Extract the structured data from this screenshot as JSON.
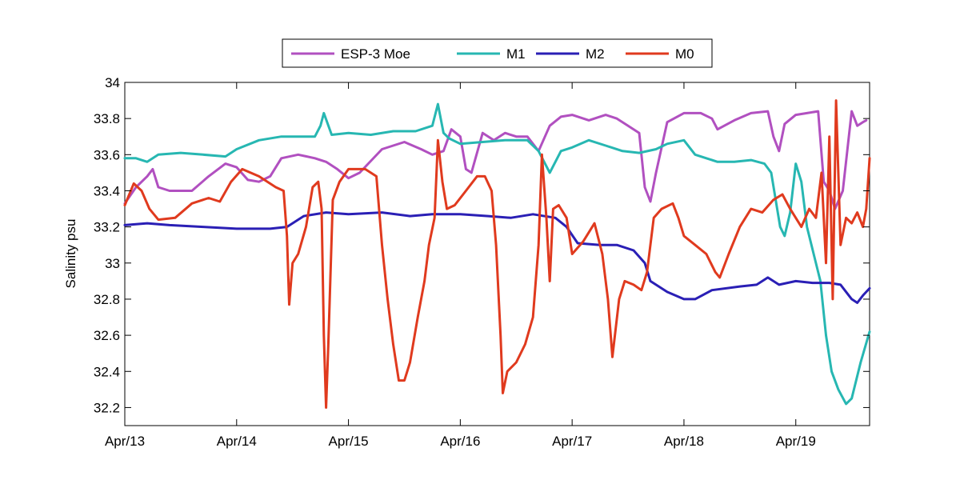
{
  "chart_data": {
    "type": "line",
    "title": "",
    "xlabel": "",
    "ylabel": "Salinity psu",
    "xlim": [
      13.0,
      19.66
    ],
    "ylim": [
      32.1,
      34.0
    ],
    "grid": false,
    "legend_position": "top",
    "x_ticks": [
      {
        "value": 13,
        "label": "Apr/13"
      },
      {
        "value": 14,
        "label": "Apr/14"
      },
      {
        "value": 15,
        "label": "Apr/15"
      },
      {
        "value": 16,
        "label": "Apr/16"
      },
      {
        "value": 17,
        "label": "Apr/17"
      },
      {
        "value": 18,
        "label": "Apr/18"
      },
      {
        "value": 19,
        "label": "Apr/19"
      }
    ],
    "y_ticks": [
      {
        "value": 32.2,
        "label": "32.2"
      },
      {
        "value": 32.4,
        "label": "32.4"
      },
      {
        "value": 32.6,
        "label": "32.6"
      },
      {
        "value": 32.8,
        "label": "32.8"
      },
      {
        "value": 33.0,
        "label": "33"
      },
      {
        "value": 33.2,
        "label": "33.2"
      },
      {
        "value": 33.4,
        "label": "33.4"
      },
      {
        "value": 33.6,
        "label": "33.6"
      },
      {
        "value": 33.8,
        "label": "33.8"
      },
      {
        "value": 34.0,
        "label": "34"
      }
    ],
    "series": [
      {
        "name": "ESP-3 Moe",
        "color": "#b150c0",
        "points": [
          [
            13.0,
            33.33
          ],
          [
            13.1,
            33.42
          ],
          [
            13.2,
            33.48
          ],
          [
            13.25,
            33.52
          ],
          [
            13.3,
            33.42
          ],
          [
            13.4,
            33.4
          ],
          [
            13.6,
            33.4
          ],
          [
            13.75,
            33.48
          ],
          [
            13.9,
            33.55
          ],
          [
            14.0,
            33.53
          ],
          [
            14.1,
            33.46
          ],
          [
            14.2,
            33.45
          ],
          [
            14.3,
            33.48
          ],
          [
            14.4,
            33.58
          ],
          [
            14.55,
            33.6
          ],
          [
            14.7,
            33.58
          ],
          [
            14.8,
            33.56
          ],
          [
            14.9,
            33.52
          ],
          [
            15.0,
            33.47
          ],
          [
            15.1,
            33.5
          ],
          [
            15.3,
            33.63
          ],
          [
            15.5,
            33.67
          ],
          [
            15.65,
            33.63
          ],
          [
            15.75,
            33.6
          ],
          [
            15.85,
            33.62
          ],
          [
            15.92,
            33.74
          ],
          [
            16.0,
            33.7
          ],
          [
            16.05,
            33.52
          ],
          [
            16.1,
            33.5
          ],
          [
            16.2,
            33.72
          ],
          [
            16.3,
            33.68
          ],
          [
            16.4,
            33.72
          ],
          [
            16.5,
            33.7
          ],
          [
            16.6,
            33.7
          ],
          [
            16.7,
            33.62
          ],
          [
            16.8,
            33.76
          ],
          [
            16.9,
            33.81
          ],
          [
            17.0,
            33.82
          ],
          [
            17.15,
            33.79
          ],
          [
            17.3,
            33.82
          ],
          [
            17.4,
            33.8
          ],
          [
            17.5,
            33.76
          ],
          [
            17.6,
            33.72
          ],
          [
            17.65,
            33.42
          ],
          [
            17.7,
            33.34
          ],
          [
            17.75,
            33.5
          ],
          [
            17.85,
            33.78
          ],
          [
            18.0,
            33.83
          ],
          [
            18.15,
            33.83
          ],
          [
            18.25,
            33.8
          ],
          [
            18.3,
            33.74
          ],
          [
            18.45,
            33.79
          ],
          [
            18.6,
            33.83
          ],
          [
            18.75,
            33.84
          ],
          [
            18.8,
            33.7
          ],
          [
            18.85,
            33.62
          ],
          [
            18.9,
            33.77
          ],
          [
            19.0,
            33.82
          ],
          [
            19.1,
            33.83
          ],
          [
            19.2,
            33.84
          ],
          [
            19.25,
            33.45
          ],
          [
            19.3,
            33.4
          ],
          [
            19.35,
            33.3
          ],
          [
            19.42,
            33.4
          ],
          [
            19.5,
            33.84
          ],
          [
            19.55,
            33.76
          ],
          [
            19.6,
            33.78
          ],
          [
            19.63,
            33.79
          ]
        ]
      },
      {
        "name": "M1",
        "color": "#27b7b2",
        "points": [
          [
            13.0,
            33.58
          ],
          [
            13.1,
            33.58
          ],
          [
            13.2,
            33.56
          ],
          [
            13.3,
            33.6
          ],
          [
            13.5,
            33.61
          ],
          [
            13.7,
            33.6
          ],
          [
            13.9,
            33.59
          ],
          [
            14.0,
            33.63
          ],
          [
            14.2,
            33.68
          ],
          [
            14.4,
            33.7
          ],
          [
            14.6,
            33.7
          ],
          [
            14.7,
            33.7
          ],
          [
            14.75,
            33.76
          ],
          [
            14.78,
            33.83
          ],
          [
            14.85,
            33.71
          ],
          [
            15.0,
            33.72
          ],
          [
            15.2,
            33.71
          ],
          [
            15.4,
            33.73
          ],
          [
            15.6,
            33.73
          ],
          [
            15.75,
            33.76
          ],
          [
            15.8,
            33.88
          ],
          [
            15.85,
            33.72
          ],
          [
            15.9,
            33.69
          ],
          [
            16.0,
            33.66
          ],
          [
            16.2,
            33.67
          ],
          [
            16.4,
            33.68
          ],
          [
            16.6,
            33.68
          ],
          [
            16.7,
            33.62
          ],
          [
            16.8,
            33.5
          ],
          [
            16.9,
            33.62
          ],
          [
            17.0,
            33.64
          ],
          [
            17.15,
            33.68
          ],
          [
            17.3,
            33.65
          ],
          [
            17.45,
            33.62
          ],
          [
            17.6,
            33.61
          ],
          [
            17.75,
            33.63
          ],
          [
            17.85,
            33.66
          ],
          [
            18.0,
            33.68
          ],
          [
            18.1,
            33.6
          ],
          [
            18.2,
            33.58
          ],
          [
            18.3,
            33.56
          ],
          [
            18.45,
            33.56
          ],
          [
            18.6,
            33.57
          ],
          [
            18.72,
            33.55
          ],
          [
            18.78,
            33.5
          ],
          [
            18.82,
            33.35
          ],
          [
            18.86,
            33.2
          ],
          [
            18.9,
            33.15
          ],
          [
            18.95,
            33.28
          ],
          [
            19.0,
            33.55
          ],
          [
            19.05,
            33.45
          ],
          [
            19.1,
            33.2
          ],
          [
            19.18,
            33.0
          ],
          [
            19.22,
            32.9
          ],
          [
            19.27,
            32.6
          ],
          [
            19.32,
            32.4
          ],
          [
            19.38,
            32.3
          ],
          [
            19.45,
            32.22
          ],
          [
            19.5,
            32.25
          ],
          [
            19.58,
            32.45
          ],
          [
            19.66,
            32.62
          ]
        ]
      },
      {
        "name": "M2",
        "color": "#2a1fb5",
        "points": [
          [
            13.0,
            33.21
          ],
          [
            13.2,
            33.22
          ],
          [
            13.4,
            33.21
          ],
          [
            13.7,
            33.2
          ],
          [
            14.0,
            33.19
          ],
          [
            14.3,
            33.19
          ],
          [
            14.45,
            33.2
          ],
          [
            14.6,
            33.26
          ],
          [
            14.8,
            33.28
          ],
          [
            15.0,
            33.27
          ],
          [
            15.3,
            33.28
          ],
          [
            15.55,
            33.26
          ],
          [
            15.75,
            33.27
          ],
          [
            16.0,
            33.27
          ],
          [
            16.25,
            33.26
          ],
          [
            16.45,
            33.25
          ],
          [
            16.65,
            33.27
          ],
          [
            16.85,
            33.25
          ],
          [
            16.95,
            33.2
          ],
          [
            17.05,
            33.11
          ],
          [
            17.25,
            33.1
          ],
          [
            17.4,
            33.1
          ],
          [
            17.55,
            33.07
          ],
          [
            17.65,
            33.0
          ],
          [
            17.7,
            32.9
          ],
          [
            17.85,
            32.84
          ],
          [
            18.0,
            32.8
          ],
          [
            18.1,
            32.8
          ],
          [
            18.25,
            32.85
          ],
          [
            18.5,
            32.87
          ],
          [
            18.65,
            32.88
          ],
          [
            18.75,
            32.92
          ],
          [
            18.85,
            32.88
          ],
          [
            19.0,
            32.9
          ],
          [
            19.15,
            32.89
          ],
          [
            19.3,
            32.89
          ],
          [
            19.4,
            32.88
          ],
          [
            19.5,
            32.8
          ],
          [
            19.55,
            32.78
          ],
          [
            19.6,
            32.82
          ],
          [
            19.66,
            32.86
          ]
        ]
      },
      {
        "name": "M0",
        "color": "#e03a1e",
        "points": [
          [
            13.0,
            33.32
          ],
          [
            13.08,
            33.44
          ],
          [
            13.15,
            33.4
          ],
          [
            13.22,
            33.3
          ],
          [
            13.3,
            33.24
          ],
          [
            13.45,
            33.25
          ],
          [
            13.6,
            33.33
          ],
          [
            13.75,
            33.36
          ],
          [
            13.85,
            33.34
          ],
          [
            13.95,
            33.45
          ],
          [
            14.05,
            33.52
          ],
          [
            14.2,
            33.48
          ],
          [
            14.35,
            33.42
          ],
          [
            14.42,
            33.4
          ],
          [
            14.45,
            33.15
          ],
          [
            14.47,
            32.77
          ],
          [
            14.5,
            33.0
          ],
          [
            14.55,
            33.05
          ],
          [
            14.62,
            33.2
          ],
          [
            14.68,
            33.42
          ],
          [
            14.73,
            33.45
          ],
          [
            14.76,
            33.3
          ],
          [
            14.78,
            32.6
          ],
          [
            14.8,
            32.2
          ],
          [
            14.82,
            32.55
          ],
          [
            14.86,
            33.35
          ],
          [
            14.92,
            33.45
          ],
          [
            15.0,
            33.52
          ],
          [
            15.15,
            33.52
          ],
          [
            15.25,
            33.48
          ],
          [
            15.3,
            33.1
          ],
          [
            15.35,
            32.8
          ],
          [
            15.4,
            32.55
          ],
          [
            15.45,
            32.35
          ],
          [
            15.5,
            32.35
          ],
          [
            15.55,
            32.45
          ],
          [
            15.62,
            32.7
          ],
          [
            15.68,
            32.9
          ],
          [
            15.72,
            33.1
          ],
          [
            15.77,
            33.25
          ],
          [
            15.8,
            33.68
          ],
          [
            15.84,
            33.45
          ],
          [
            15.88,
            33.3
          ],
          [
            15.95,
            33.32
          ],
          [
            16.05,
            33.4
          ],
          [
            16.15,
            33.48
          ],
          [
            16.22,
            33.48
          ],
          [
            16.28,
            33.4
          ],
          [
            16.32,
            33.1
          ],
          [
            16.36,
            32.6
          ],
          [
            16.38,
            32.28
          ],
          [
            16.42,
            32.4
          ],
          [
            16.5,
            32.45
          ],
          [
            16.58,
            32.55
          ],
          [
            16.65,
            32.7
          ],
          [
            16.7,
            33.1
          ],
          [
            16.73,
            33.6
          ],
          [
            16.77,
            33.25
          ],
          [
            16.8,
            32.9
          ],
          [
            16.83,
            33.3
          ],
          [
            16.88,
            33.32
          ],
          [
            16.95,
            33.25
          ],
          [
            17.0,
            33.05
          ],
          [
            17.1,
            33.12
          ],
          [
            17.2,
            33.22
          ],
          [
            17.27,
            33.05
          ],
          [
            17.32,
            32.8
          ],
          [
            17.36,
            32.48
          ],
          [
            17.42,
            32.8
          ],
          [
            17.47,
            32.9
          ],
          [
            17.55,
            32.88
          ],
          [
            17.62,
            32.85
          ],
          [
            17.67,
            32.95
          ],
          [
            17.73,
            33.25
          ],
          [
            17.8,
            33.3
          ],
          [
            17.9,
            33.33
          ],
          [
            17.95,
            33.25
          ],
          [
            18.0,
            33.15
          ],
          [
            18.1,
            33.1
          ],
          [
            18.2,
            33.05
          ],
          [
            18.28,
            32.95
          ],
          [
            18.32,
            32.92
          ],
          [
            18.4,
            33.05
          ],
          [
            18.5,
            33.2
          ],
          [
            18.6,
            33.3
          ],
          [
            18.7,
            33.28
          ],
          [
            18.8,
            33.35
          ],
          [
            18.88,
            33.38
          ],
          [
            18.95,
            33.3
          ],
          [
            19.05,
            33.2
          ],
          [
            19.12,
            33.3
          ],
          [
            19.18,
            33.25
          ],
          [
            19.23,
            33.5
          ],
          [
            19.27,
            33.0
          ],
          [
            19.3,
            33.7
          ],
          [
            19.33,
            32.8
          ],
          [
            19.36,
            33.9
          ],
          [
            19.4,
            33.1
          ],
          [
            19.45,
            33.25
          ],
          [
            19.5,
            33.22
          ],
          [
            19.55,
            33.28
          ],
          [
            19.6,
            33.2
          ],
          [
            19.63,
            33.3
          ],
          [
            19.66,
            33.58
          ]
        ]
      }
    ]
  }
}
